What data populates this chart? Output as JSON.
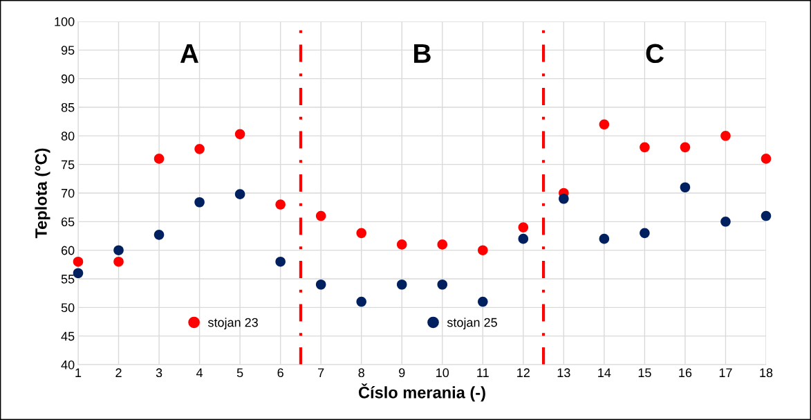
{
  "chart_data": {
    "type": "scatter",
    "xlabel": "Číslo merania (-)",
    "ylabel": "Teplota (°C)",
    "x": [
      1,
      2,
      3,
      4,
      5,
      6,
      7,
      8,
      9,
      10,
      11,
      12,
      13,
      14,
      15,
      16,
      17,
      18
    ],
    "series": [
      {
        "name": "stojan 23",
        "color": "#ff0000",
        "values": [
          58,
          58,
          76,
          77.7,
          80.3,
          68,
          66,
          63,
          61,
          61,
          60,
          64,
          70,
          82,
          78,
          78,
          80,
          76
        ]
      },
      {
        "name": "stojan 25",
        "color": "#002060",
        "values": [
          56,
          60,
          62.7,
          68.4,
          69.8,
          58,
          54,
          51,
          54,
          54,
          51,
          62,
          69,
          62,
          63,
          71,
          65,
          66
        ]
      }
    ],
    "xlim": [
      1,
      18
    ],
    "xticks": [
      1,
      2,
      3,
      4,
      5,
      6,
      7,
      8,
      9,
      10,
      11,
      12,
      13,
      14,
      15,
      16,
      17,
      18
    ],
    "ylim": [
      40,
      100
    ],
    "yticks": [
      40,
      45,
      50,
      55,
      60,
      65,
      70,
      75,
      80,
      85,
      90,
      95,
      100
    ],
    "grid": true,
    "legend": "bottom",
    "marker": "circle",
    "ref_lines": [
      {
        "axis": "x",
        "value": 6.5,
        "color": "#ff0000",
        "line_style": "dashdot"
      },
      {
        "axis": "x",
        "value": 12.5,
        "color": "#ff0000",
        "line_style": "dashdot"
      }
    ],
    "annotations": [
      "A",
      "B",
      "C"
    ]
  }
}
